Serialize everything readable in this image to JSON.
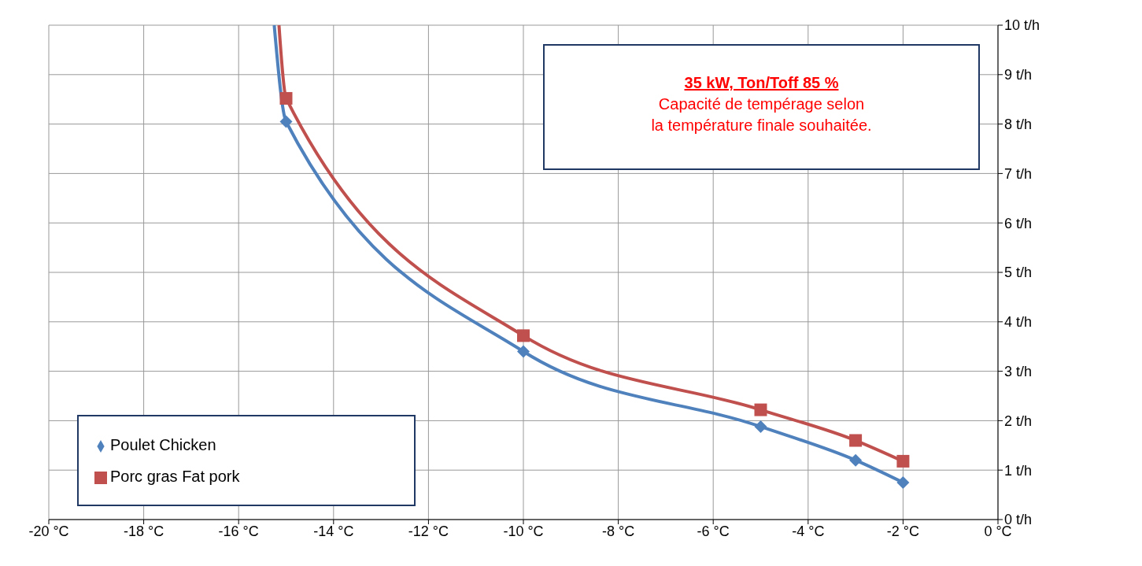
{
  "chart_data": {
    "type": "line",
    "title": "35 kW,  Ton/Toff 85 %",
    "subtitle": "Capacité de tempérage selon\nla température finale souhaitée.",
    "series": [
      {
        "name": "Poulet Chicken",
        "color": "#4f81bd",
        "marker": "diamond",
        "x": [
          -15.25,
          -15,
          -10,
          -5,
          -3,
          -2
        ],
        "values": [
          10,
          8.05,
          3.4,
          1.88,
          1.2,
          0.75
        ]
      },
      {
        "name": "Porc gras Fat pork",
        "color": "#c0504d",
        "marker": "square",
        "x": [
          -15.15,
          -15,
          -10,
          -5,
          -3,
          -2
        ],
        "values": [
          10,
          8.52,
          3.72,
          2.22,
          1.6,
          1.18
        ]
      }
    ],
    "xlim": [
      -20,
      0
    ],
    "xticks": [
      {
        "value": -20,
        "label": "-20 °C"
      },
      {
        "value": -18,
        "label": "-18 °C"
      },
      {
        "value": -16,
        "label": "-16 °C"
      },
      {
        "value": -14,
        "label": "-14 °C"
      },
      {
        "value": -12,
        "label": "-12 °C"
      },
      {
        "value": -10,
        "label": "-10 °C"
      },
      {
        "value": -8,
        "label": "-8 °C"
      },
      {
        "value": -6,
        "label": "-6 °C"
      },
      {
        "value": -4,
        "label": "-4 °C"
      },
      {
        "value": -2,
        "label": "-2 °C"
      },
      {
        "value": 0,
        "label": "0 °C"
      }
    ],
    "ylim": [
      0,
      10
    ],
    "yticks": [
      {
        "value": 0,
        "label": "0 t/h"
      },
      {
        "value": 1,
        "label": "1 t/h"
      },
      {
        "value": 2,
        "label": "2 t/h"
      },
      {
        "value": 3,
        "label": "3 t/h"
      },
      {
        "value": 4,
        "label": "4 t/h"
      },
      {
        "value": 5,
        "label": "5 t/h"
      },
      {
        "value": 6,
        "label": "6 t/h"
      },
      {
        "value": 7,
        "label": "7 t/h"
      },
      {
        "value": 8,
        "label": "8 t/h"
      },
      {
        "value": 9,
        "label": "9 t/h"
      },
      {
        "value": 10,
        "label": "10 t/h"
      }
    ],
    "grid": true,
    "legend": "bottom left",
    "line_style": "solid"
  }
}
